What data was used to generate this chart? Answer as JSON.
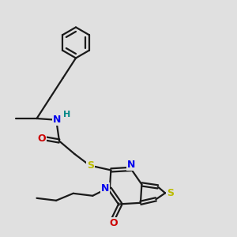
{
  "bg_color": "#e0e0e0",
  "bond_color": "#1a1a1a",
  "N_color": "#0000ee",
  "O_color": "#cc0000",
  "S_color": "#bbbb00",
  "H_color": "#008888",
  "line_width": 1.6,
  "figsize": [
    3.0,
    3.0
  ],
  "dpi": 100,
  "xlim": [
    0,
    10
  ],
  "ylim": [
    0,
    10
  ],
  "font_size": 9
}
